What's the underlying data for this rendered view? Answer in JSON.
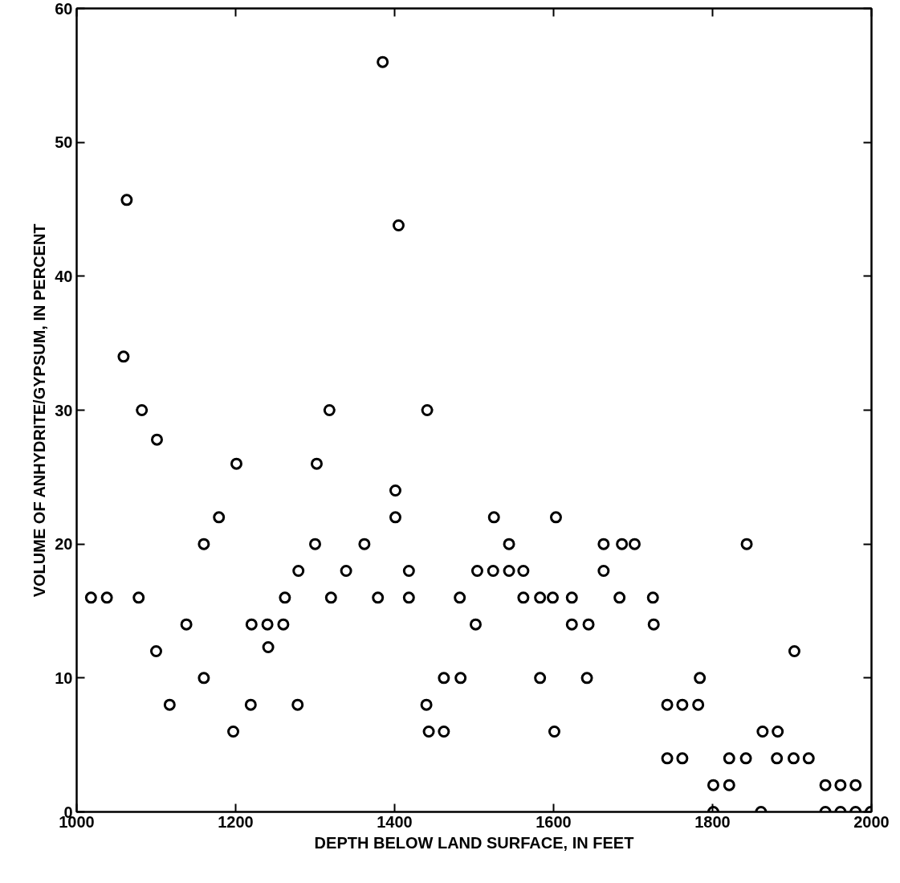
{
  "chart_data": {
    "type": "scatter",
    "xlabel": "DEPTH BELOW LAND SURFACE, IN FEET",
    "ylabel": "VOLUME OF ANHYDRITE/GYPSUM, IN PERCENT",
    "xlim": [
      1000,
      2000
    ],
    "ylim": [
      0,
      60
    ],
    "xticks": [
      1000,
      1200,
      1400,
      1600,
      1800,
      2000
    ],
    "yticks": [
      0,
      10,
      20,
      30,
      40,
      50,
      60
    ],
    "grid": false,
    "marker": "circle",
    "series": [
      {
        "color": "#000000",
        "x": [
          1018,
          1038,
          1063,
          1059,
          1082,
          1078,
          1101,
          1100,
          1117,
          1138,
          1160,
          1160,
          1179,
          1197,
          1201,
          1220,
          1219,
          1240,
          1241,
          1260,
          1262,
          1279,
          1278,
          1300,
          1302,
          1318,
          1320,
          1339,
          1362,
          1379,
          1385,
          1401,
          1401,
          1405,
          1418,
          1418,
          1441,
          1440,
          1443,
          1462,
          1462,
          1483,
          1482,
          1502,
          1504,
          1525,
          1524,
          1544,
          1544,
          1562,
          1562,
          1583,
          1583,
          1599,
          1601,
          1603,
          1623,
          1623,
          1642,
          1644,
          1663,
          1663,
          1683,
          1686,
          1702,
          1725,
          1726,
          1743,
          1743,
          1762,
          1762,
          1782,
          1784,
          1801,
          1801,
          1821,
          1821,
          1842,
          1843,
          1861,
          1863,
          1881,
          1882,
          1902,
          1903,
          1921,
          1942,
          1942,
          1961,
          1961,
          1980,
          1980,
          1999
        ],
        "values": [
          16,
          16,
          45.7,
          34,
          30,
          16,
          27.8,
          12,
          8,
          14,
          20,
          10,
          22,
          6,
          26,
          14,
          8,
          14,
          12.3,
          14,
          16,
          18,
          8,
          20,
          26,
          30,
          16,
          18,
          20,
          16,
          56,
          24,
          22,
          43.8,
          18,
          16,
          30,
          8,
          6,
          6,
          10,
          10,
          16,
          14,
          18,
          22,
          18,
          20,
          18,
          18,
          16,
          16,
          10,
          16,
          6,
          22,
          16,
          14,
          10,
          14,
          20,
          18,
          16,
          20,
          20,
          16,
          14,
          8,
          4,
          8,
          4,
          8,
          10,
          2,
          0,
          2,
          4,
          4,
          20,
          0,
          6,
          4,
          6,
          4,
          12,
          4,
          2,
          0,
          2,
          0,
          2,
          0,
          0
        ]
      }
    ]
  }
}
